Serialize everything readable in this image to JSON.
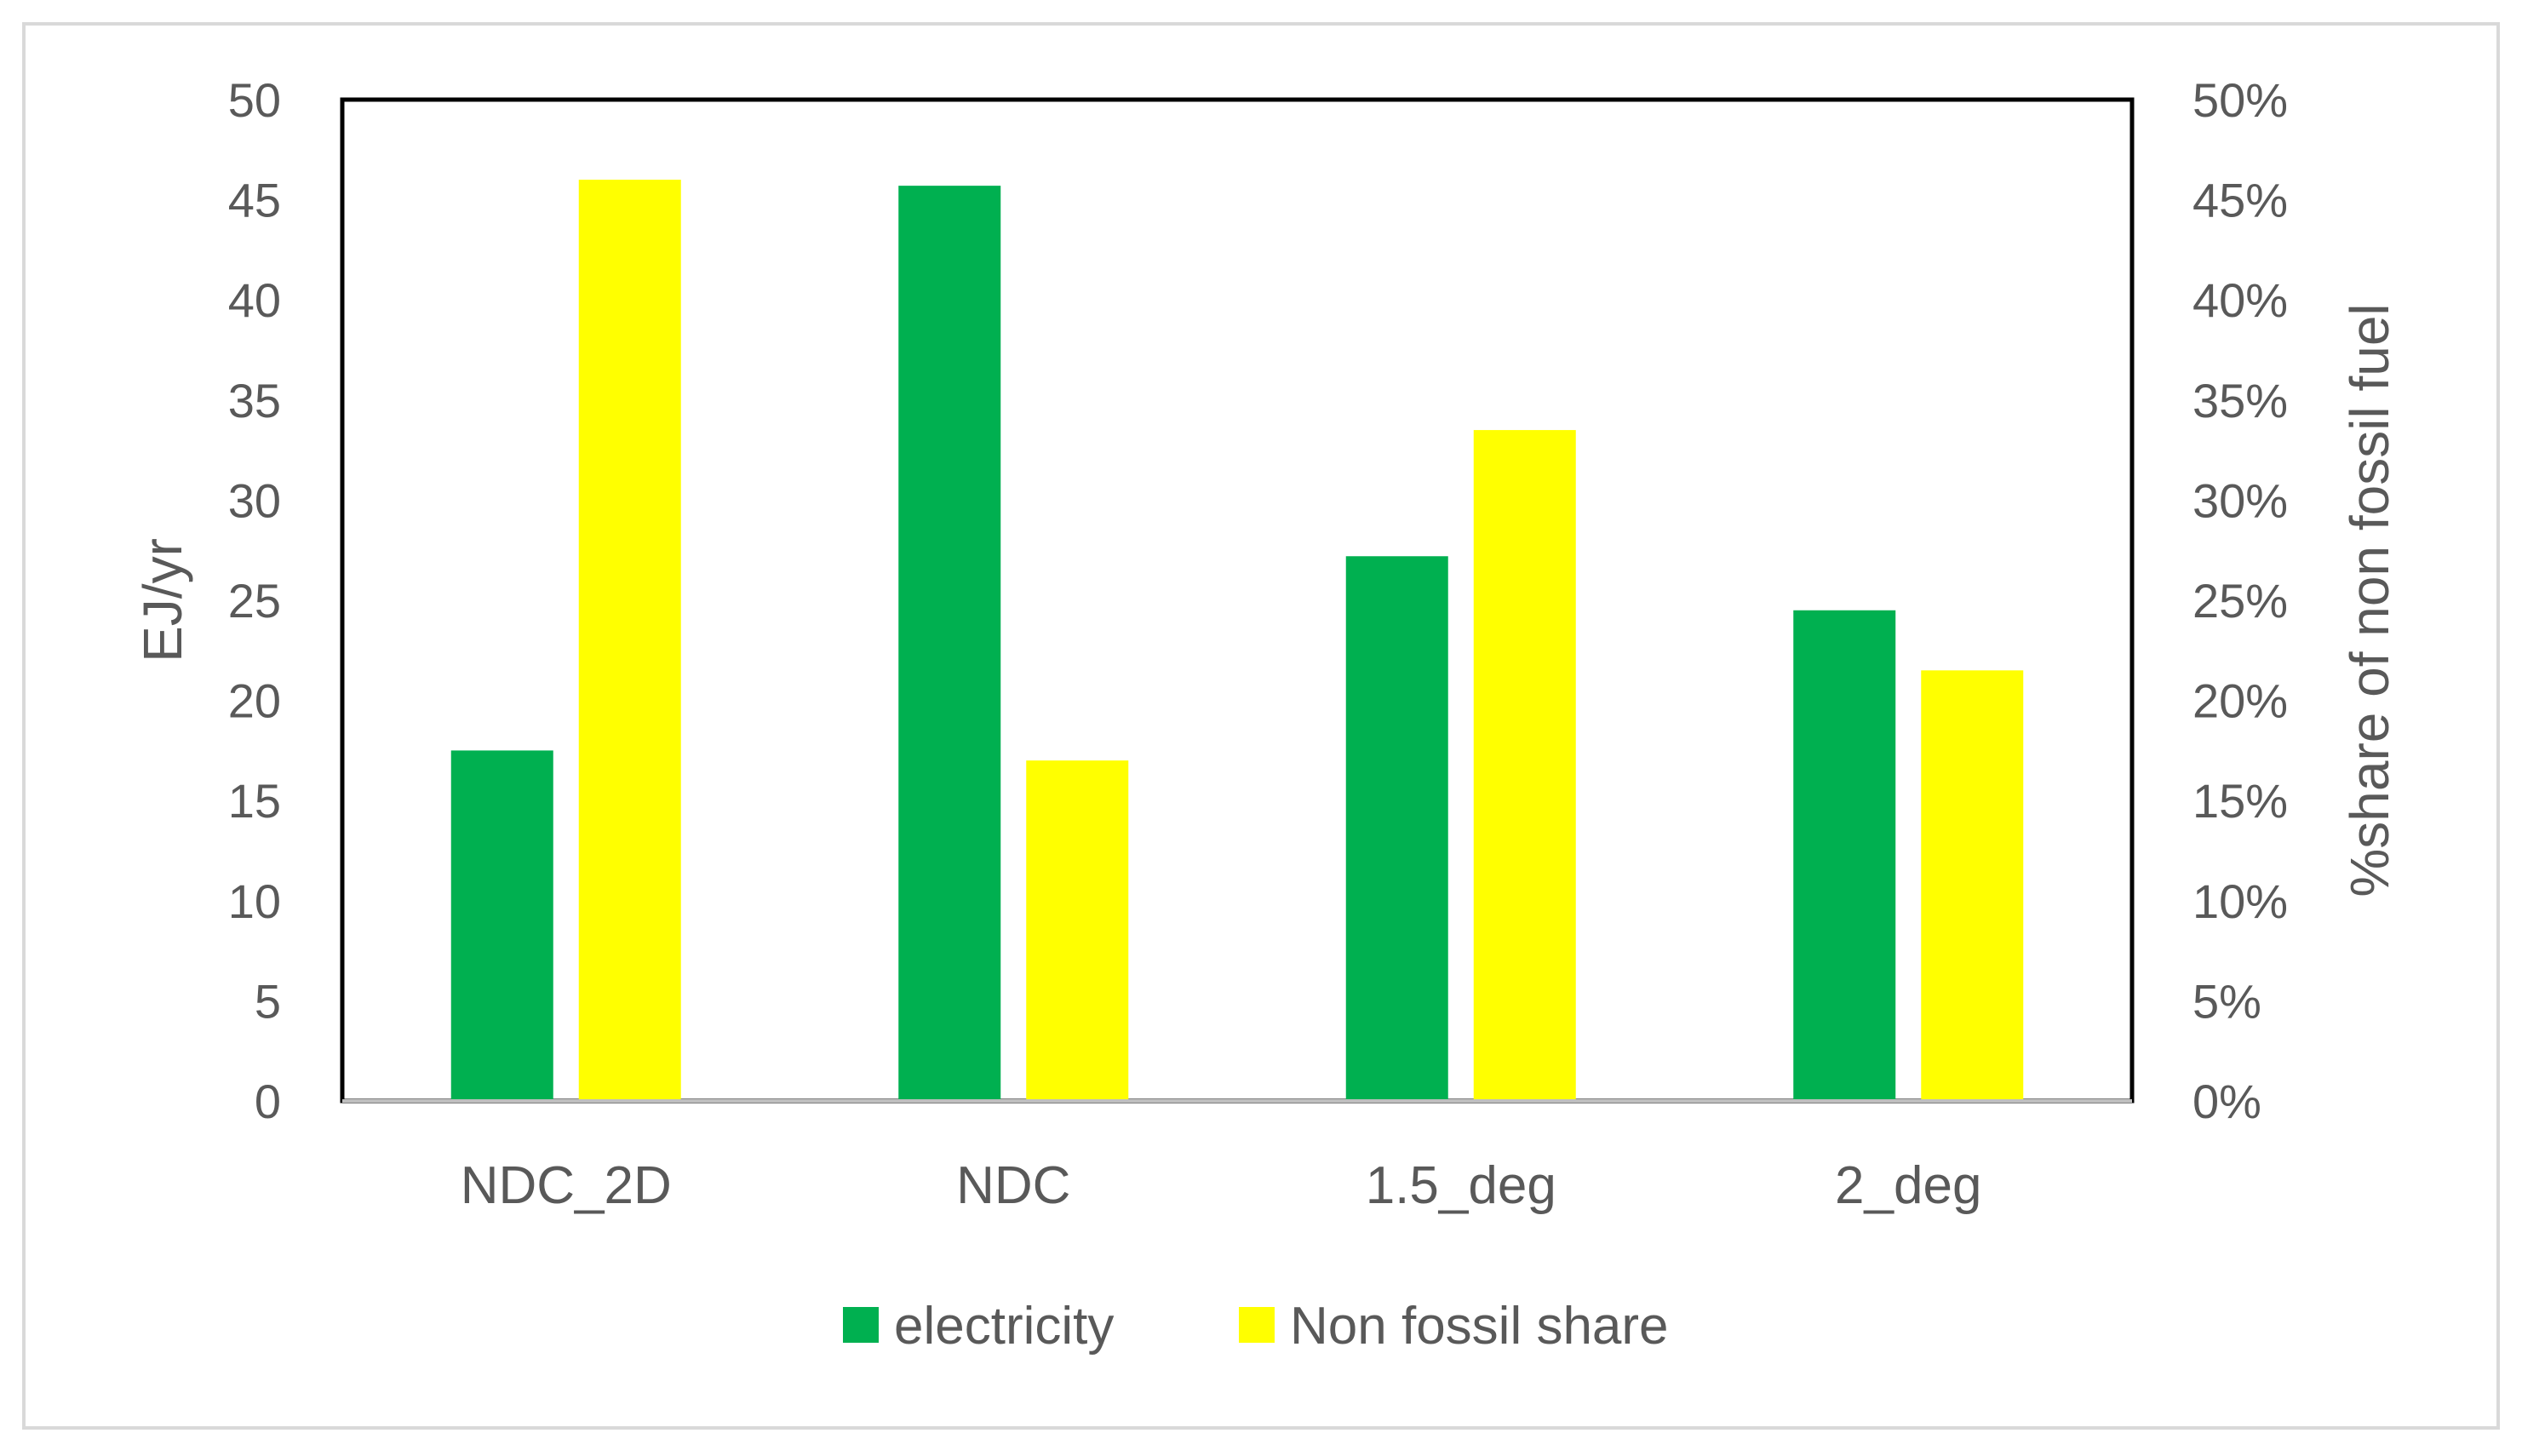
{
  "chart_data": {
    "type": "bar",
    "categories": [
      "NDC_2D",
      "NDC",
      "1.5_deg",
      "2_deg"
    ],
    "series": [
      {
        "name": "electricity",
        "axis": "left",
        "color": "#00B050",
        "values": [
          17.5,
          45.7,
          27.2,
          24.5
        ]
      },
      {
        "name": "Non fossil share",
        "axis": "right",
        "color": "#FFFF00",
        "values": [
          0.46,
          0.17,
          0.335,
          0.215
        ]
      }
    ],
    "y_left": {
      "label": "EJ/yr",
      "lim": [
        0,
        50
      ],
      "ticks": [
        0,
        5,
        10,
        15,
        20,
        25,
        30,
        35,
        40,
        45,
        50
      ],
      "tick_labels": [
        "0",
        "5",
        "10",
        "15",
        "20",
        "25",
        "30",
        "35",
        "40",
        "45",
        "50"
      ]
    },
    "y_right": {
      "label": "%share of non fossil fuel",
      "lim": [
        0,
        0.5
      ],
      "ticks": [
        0,
        0.05,
        0.1,
        0.15,
        0.2,
        0.25,
        0.3,
        0.35,
        0.4,
        0.45,
        0.5
      ],
      "tick_labels": [
        "0%",
        "5%",
        "10%",
        "15%",
        "20%",
        "25%",
        "30%",
        "35%",
        "40%",
        "45%",
        "50%"
      ]
    },
    "legend": {
      "position": "bottom",
      "entries": [
        "electricity",
        "Non fossil share"
      ]
    },
    "grid": false
  }
}
